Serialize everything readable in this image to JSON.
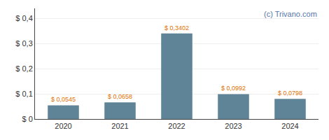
{
  "chart_data": {
    "type": "bar",
    "categories": [
      "2020",
      "2021",
      "2022",
      "2023",
      "2024"
    ],
    "values": [
      0.0545,
      0.0658,
      0.3402,
      0.0992,
      0.0798
    ],
    "value_labels": [
      "$ 0,0545",
      "$ 0,0658",
      "$ 0,3402",
      "$ 0,0992",
      "$ 0,0798"
    ],
    "data_labels": true,
    "color": "#5f8497",
    "ylim": [
      0,
      0.44
    ],
    "yticks": [
      {
        "value": 0.0,
        "label": "$ 0"
      },
      {
        "value": 0.1,
        "label": "$ 0,1"
      },
      {
        "value": 0.2,
        "label": "$ 0,2"
      },
      {
        "value": 0.3,
        "label": "$ 0,3"
      },
      {
        "value": 0.4,
        "label": "$ 0,4"
      }
    ],
    "grid": true,
    "annotations": [
      "(c) Trivano.com"
    ]
  }
}
